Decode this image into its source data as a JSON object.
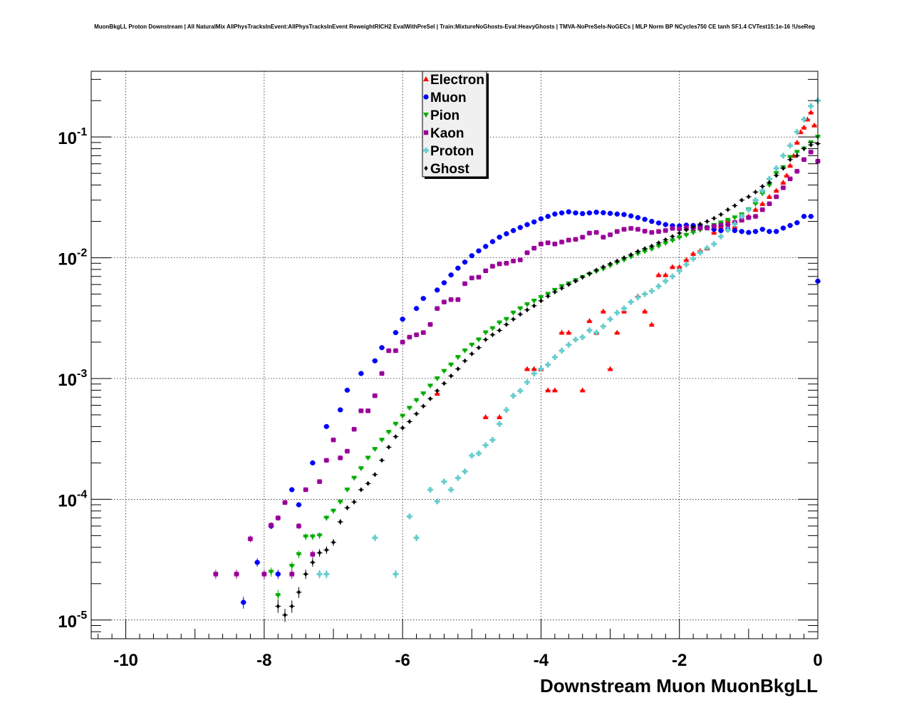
{
  "chart_data": {
    "type": "scatter",
    "title": "MuonBkgLL Proton Downstream | All NaturalMix AllPhysTracksInEvent:AllPhysTracksInEvent ReweightRICH2 EvalWithPreSel | Train:MixtureNoGhosts-Eval:HeavyGhosts | TMVA-NoPreSels-NoGECs | MLP Norm BP NCycles750 CE tanh SF1.4 CVTest15:1e-16 !UseReg",
    "xlabel": "Downstream Muon MuonBkgLL",
    "ylabel": "",
    "xlim": [
      -10.5,
      0
    ],
    "ylim": [
      7e-06,
      0.35
    ],
    "yscale": "log",
    "grid": true,
    "x_tick_values": [
      -10,
      -8,
      -6,
      -4,
      -2,
      0
    ],
    "x_tick_labels": [
      "-10",
      "-8",
      "-6",
      "-4",
      "-2",
      "0"
    ],
    "y_tick_values": [
      0.1,
      0.01,
      0.001,
      0.0001,
      1e-05
    ],
    "y_tick_bases": [
      "10",
      "10",
      "10",
      "10",
      "10"
    ],
    "y_tick_exponents": [
      "-1",
      "-2",
      "-3",
      "-4",
      "-5"
    ],
    "legend": {
      "position": "top-center"
    },
    "series": [
      {
        "name": "Electron",
        "color": "#ff0000",
        "marker": "triangle-up",
        "x": [
          -5.5,
          -4.8,
          -4.6,
          -4.2,
          -4.1,
          -4.0,
          -3.9,
          -3.8,
          -3.7,
          -3.6,
          -3.4,
          -3.3,
          -3.2,
          -3.1,
          -3.0,
          -2.9,
          -2.8,
          -2.6,
          -2.5,
          -2.4,
          -2.3,
          -2.2,
          -2.1,
          -2.0,
          -1.9,
          -1.8,
          -1.7,
          -1.6,
          -1.5,
          -1.4,
          -1.3,
          -1.2,
          -1.1,
          -1.0,
          -0.9,
          -0.8,
          -0.7,
          -0.6,
          -0.5,
          -0.45,
          -0.4,
          -0.35,
          -0.3,
          -0.25,
          -0.2,
          -0.15,
          -0.1,
          -0.05
        ],
        "y": [
          0.00075,
          0.00048,
          0.00048,
          0.0012,
          0.0012,
          0.0012,
          0.0008,
          0.0008,
          0.0024,
          0.0024,
          0.0008,
          0.003,
          0.0024,
          0.0036,
          0.0012,
          0.0024,
          0.0036,
          0.0048,
          0.0036,
          0.0028,
          0.0072,
          0.0072,
          0.0084,
          0.0084,
          0.0096,
          0.0108,
          0.0114,
          0.012,
          0.0162,
          0.018,
          0.0204,
          0.018,
          0.0204,
          0.022,
          0.025,
          0.028,
          0.032,
          0.036,
          0.042,
          0.048,
          0.058,
          0.07,
          0.09,
          0.11,
          0.12,
          0.14,
          0.16,
          0.125
        ]
      },
      {
        "name": "Muon",
        "color": "#0000ff",
        "marker": "circle",
        "x": [
          -8.3,
          -8.1,
          -7.9,
          -7.8,
          -7.6,
          -7.5,
          -7.3,
          -7.1,
          -6.9,
          -6.8,
          -6.6,
          -6.4,
          -6.3,
          -6.1,
          -6.0,
          -5.8,
          -5.7,
          -5.5,
          -5.4,
          -5.3,
          -5.2,
          -5.1,
          -5.0,
          -4.9,
          -4.8,
          -4.7,
          -4.6,
          -4.5,
          -4.4,
          -4.3,
          -4.2,
          -4.1,
          -4.0,
          -3.9,
          -3.8,
          -3.7,
          -3.6,
          -3.5,
          -3.4,
          -3.3,
          -3.2,
          -3.1,
          -3.0,
          -2.9,
          -2.8,
          -2.7,
          -2.6,
          -2.5,
          -2.4,
          -2.3,
          -2.2,
          -2.1,
          -2.0,
          -1.9,
          -1.8,
          -1.7,
          -1.6,
          -1.5,
          -1.4,
          -1.3,
          -1.2,
          -1.1,
          -1.0,
          -0.9,
          -0.8,
          -0.7,
          -0.6,
          -0.5,
          -0.4,
          -0.3,
          -0.2,
          -0.1,
          0.0
        ],
        "y": [
          1.4e-05,
          3e-05,
          6e-05,
          2.4e-05,
          0.00012,
          9e-05,
          0.0002,
          0.0004,
          0.00055,
          0.0008,
          0.0011,
          0.0014,
          0.0018,
          0.0024,
          0.0031,
          0.0038,
          0.0046,
          0.0054,
          0.0062,
          0.0072,
          0.0082,
          0.0092,
          0.0104,
          0.0114,
          0.0124,
          0.0136,
          0.0148,
          0.0158,
          0.0168,
          0.0178,
          0.0188,
          0.0198,
          0.021,
          0.022,
          0.023,
          0.0235,
          0.024,
          0.0235,
          0.0232,
          0.0235,
          0.0238,
          0.0236,
          0.0233,
          0.023,
          0.0228,
          0.0222,
          0.0215,
          0.0208,
          0.02,
          0.0194,
          0.0188,
          0.0184,
          0.0183,
          0.0186,
          0.0185,
          0.0183,
          0.0178,
          0.0172,
          0.0168,
          0.0172,
          0.0168,
          0.0165,
          0.0162,
          0.0165,
          0.0172,
          0.0165,
          0.0165,
          0.0176,
          0.0185,
          0.0195,
          0.022,
          0.022,
          0.0064
        ]
      },
      {
        "name": "Pion",
        "color": "#00aa00",
        "marker": "triangle-down",
        "x": [
          -7.9,
          -7.8,
          -7.6,
          -7.5,
          -7.4,
          -7.3,
          -7.2,
          -7.1,
          -7.0,
          -6.9,
          -6.8,
          -6.7,
          -6.6,
          -6.5,
          -6.4,
          -6.3,
          -6.2,
          -6.1,
          -6.0,
          -5.9,
          -5.8,
          -5.7,
          -5.6,
          -5.5,
          -5.4,
          -5.3,
          -5.2,
          -5.1,
          -5.0,
          -4.9,
          -4.8,
          -4.7,
          -4.6,
          -4.5,
          -4.4,
          -4.3,
          -4.2,
          -4.1,
          -4.0,
          -3.9,
          -3.8,
          -3.7,
          -3.6,
          -3.5,
          -3.4,
          -3.3,
          -3.2,
          -3.1,
          -3.0,
          -2.9,
          -2.8,
          -2.7,
          -2.6,
          -2.5,
          -2.4,
          -2.3,
          -2.2,
          -2.1,
          -2.0,
          -1.9,
          -1.8,
          -1.7,
          -1.6,
          -1.5,
          -1.4,
          -1.3,
          -1.2,
          -1.1,
          -1.0,
          -0.9,
          -0.8,
          -0.7,
          -0.6,
          -0.5,
          -0.4,
          -0.3,
          -0.2,
          -0.1,
          0.0
        ],
        "y": [
          2.5e-05,
          1.6e-05,
          2.8e-05,
          3.5e-05,
          4.9e-05,
          4.9e-05,
          5e-05,
          7e-05,
          8e-05,
          9.5e-05,
          0.00012,
          0.00015,
          0.00018,
          0.00022,
          0.00026,
          0.00031,
          0.00036,
          0.00042,
          0.00049,
          0.00057,
          0.00066,
          0.00075,
          0.00087,
          0.001,
          0.00115,
          0.0013,
          0.0015,
          0.0017,
          0.0019,
          0.0021,
          0.0024,
          0.0026,
          0.0029,
          0.0031,
          0.0035,
          0.0038,
          0.0041,
          0.0044,
          0.0047,
          0.005,
          0.0054,
          0.0058,
          0.0061,
          0.0065,
          0.0069,
          0.0073,
          0.0077,
          0.0081,
          0.0086,
          0.0091,
          0.0096,
          0.0102,
          0.0108,
          0.0113,
          0.0118,
          0.0125,
          0.0132,
          0.0139,
          0.0147,
          0.0154,
          0.0162,
          0.017,
          0.0178,
          0.0186,
          0.0195,
          0.0205,
          0.0215,
          0.0228,
          0.025,
          0.028,
          0.034,
          0.04,
          0.05,
          0.056,
          0.068,
          0.075,
          0.08,
          0.09,
          0.1
        ]
      },
      {
        "name": "Kaon",
        "color": "#990099",
        "marker": "square",
        "x": [
          -8.7,
          -8.4,
          -8.2,
          -8.0,
          -7.9,
          -7.8,
          -7.7,
          -7.6,
          -7.5,
          -7.4,
          -7.3,
          -7.2,
          -7.1,
          -7.0,
          -6.9,
          -6.8,
          -6.7,
          -6.6,
          -6.5,
          -6.4,
          -6.3,
          -6.2,
          -6.1,
          -6.0,
          -5.9,
          -5.8,
          -5.7,
          -5.6,
          -5.5,
          -5.4,
          -5.3,
          -5.2,
          -5.1,
          -5.0,
          -4.9,
          -4.8,
          -4.7,
          -4.6,
          -4.5,
          -4.4,
          -4.3,
          -4.2,
          -4.1,
          -4.0,
          -3.9,
          -3.8,
          -3.7,
          -3.6,
          -3.5,
          -3.4,
          -3.3,
          -3.2,
          -3.1,
          -3.0,
          -2.9,
          -2.8,
          -2.7,
          -2.6,
          -2.5,
          -2.4,
          -2.3,
          -2.2,
          -2.1,
          -2.0,
          -1.9,
          -1.8,
          -1.7,
          -1.6,
          -1.5,
          -1.4,
          -1.3,
          -1.2,
          -1.1,
          -1.0,
          -0.9,
          -0.8,
          -0.7,
          -0.6,
          -0.5,
          -0.4,
          -0.3,
          -0.2,
          -0.1,
          0.0
        ],
        "y": [
          2.4e-05,
          2.4e-05,
          4.7e-05,
          2.4e-05,
          6.1e-05,
          7e-05,
          9.4e-05,
          2.4e-05,
          6e-05,
          0.00012,
          3.5e-05,
          0.00014,
          0.00021,
          0.00031,
          0.00022,
          0.00025,
          0.00038,
          0.00054,
          0.00054,
          0.00072,
          0.0011,
          0.0017,
          0.0017,
          0.002,
          0.0022,
          0.0023,
          0.0024,
          0.0028,
          0.0038,
          0.0043,
          0.0045,
          0.0045,
          0.0061,
          0.0068,
          0.0069,
          0.0078,
          0.0085,
          0.0089,
          0.009,
          0.0094,
          0.0096,
          0.011,
          0.012,
          0.013,
          0.0133,
          0.013,
          0.0135,
          0.014,
          0.0142,
          0.0148,
          0.016,
          0.0162,
          0.0148,
          0.0155,
          0.0165,
          0.0172,
          0.0175,
          0.0172,
          0.0166,
          0.0162,
          0.0165,
          0.0168,
          0.0175,
          0.0174,
          0.0178,
          0.0175,
          0.0176,
          0.0176,
          0.0182,
          0.0186,
          0.0188,
          0.0196,
          0.0205,
          0.0215,
          0.022,
          0.025,
          0.028,
          0.032,
          0.038,
          0.045,
          0.052,
          0.065,
          0.075,
          0.063
        ]
      },
      {
        "name": "Proton",
        "color": "#66cccc",
        "marker": "cross",
        "x": [
          -7.2,
          -7.1,
          -6.4,
          -6.1,
          -5.9,
          -5.8,
          -5.6,
          -5.5,
          -5.4,
          -5.3,
          -5.2,
          -5.1,
          -5.0,
          -4.9,
          -4.8,
          -4.7,
          -4.6,
          -4.5,
          -4.4,
          -4.3,
          -4.2,
          -4.1,
          -4.0,
          -3.9,
          -3.8,
          -3.7,
          -3.6,
          -3.5,
          -3.4,
          -3.3,
          -3.2,
          -3.1,
          -3.0,
          -2.9,
          -2.8,
          -2.7,
          -2.6,
          -2.5,
          -2.4,
          -2.3,
          -2.2,
          -2.1,
          -2.0,
          -1.9,
          -1.8,
          -1.7,
          -1.6,
          -1.5,
          -1.4,
          -1.3,
          -1.2,
          -1.1,
          -1.0,
          -0.9,
          -0.8,
          -0.7,
          -0.6,
          -0.5,
          -0.4,
          -0.3,
          -0.2,
          -0.1,
          0.0
        ],
        "y": [
          2.4e-05,
          2.4e-05,
          4.8e-05,
          2.4e-05,
          7.2e-05,
          4.8e-05,
          0.00012,
          9.6e-05,
          0.00014,
          0.00012,
          0.00015,
          0.00017,
          0.00023,
          0.00024,
          0.00028,
          0.00031,
          0.00042,
          0.00055,
          0.00072,
          0.00079,
          0.00093,
          0.0011,
          0.0012,
          0.0013,
          0.0015,
          0.0017,
          0.0019,
          0.0021,
          0.0022,
          0.0025,
          0.0024,
          0.0027,
          0.0031,
          0.0035,
          0.0038,
          0.0043,
          0.0047,
          0.005,
          0.0053,
          0.0058,
          0.0064,
          0.007,
          0.0078,
          0.0088,
          0.0098,
          0.011,
          0.012,
          0.013,
          0.015,
          0.017,
          0.019,
          0.022,
          0.025,
          0.03,
          0.036,
          0.045,
          0.055,
          0.07,
          0.085,
          0.11,
          0.14,
          0.18,
          0.2
        ]
      },
      {
        "name": "Ghost",
        "color": "#000000",
        "marker": "diamond",
        "x": [
          -7.8,
          -7.7,
          -7.6,
          -7.5,
          -7.4,
          -7.3,
          -7.2,
          -7.1,
          -7.0,
          -6.9,
          -6.8,
          -6.7,
          -6.6,
          -6.5,
          -6.4,
          -6.3,
          -6.2,
          -6.1,
          -6.0,
          -5.9,
          -5.8,
          -5.7,
          -5.6,
          -5.5,
          -5.4,
          -5.3,
          -5.2,
          -5.1,
          -5.0,
          -4.9,
          -4.8,
          -4.7,
          -4.6,
          -4.5,
          -4.4,
          -4.3,
          -4.2,
          -4.1,
          -4.0,
          -3.9,
          -3.8,
          -3.7,
          -3.6,
          -3.5,
          -3.4,
          -3.3,
          -3.2,
          -3.1,
          -3.0,
          -2.9,
          -2.8,
          -2.7,
          -2.6,
          -2.5,
          -2.4,
          -2.3,
          -2.2,
          -2.1,
          -2.0,
          -1.9,
          -1.8,
          -1.7,
          -1.6,
          -1.5,
          -1.4,
          -1.3,
          -1.2,
          -1.1,
          -1.0,
          -0.9,
          -0.8,
          -0.7,
          -0.6,
          -0.5,
          -0.4,
          -0.3,
          -0.2,
          -0.1,
          0.0
        ],
        "y": [
          1.3e-05,
          1.1e-05,
          1.3e-05,
          1.7e-05,
          2.4e-05,
          3e-05,
          3.6e-05,
          3.8e-05,
          4.4e-05,
          6.5e-05,
          8.5e-05,
          9.5e-05,
          0.00012,
          0.000135,
          0.00016,
          0.00021,
          0.00027,
          0.00033,
          0.00039,
          0.00044,
          0.00051,
          0.00059,
          0.00068,
          0.00079,
          0.00091,
          0.00105,
          0.0012,
          0.0014,
          0.0016,
          0.0018,
          0.0021,
          0.0023,
          0.0025,
          0.0028,
          0.0031,
          0.0034,
          0.0037,
          0.004,
          0.0044,
          0.0048,
          0.0052,
          0.0056,
          0.006,
          0.0064,
          0.0069,
          0.0074,
          0.0079,
          0.0084,
          0.0089,
          0.0094,
          0.01,
          0.0106,
          0.0113,
          0.0119,
          0.0125,
          0.0133,
          0.0141,
          0.015,
          0.016,
          0.017,
          0.018,
          0.019,
          0.02,
          0.0212,
          0.0228,
          0.025,
          0.027,
          0.03,
          0.032,
          0.035,
          0.039,
          0.042,
          0.048,
          0.055,
          0.065,
          0.07,
          0.08,
          0.086,
          0.088
        ]
      }
    ]
  }
}
